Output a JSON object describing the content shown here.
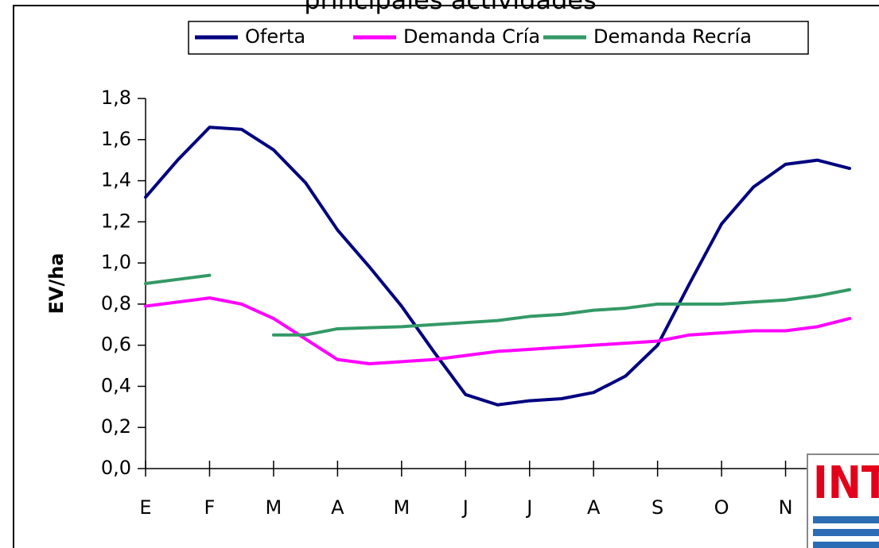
{
  "chart_data": {
    "type": "line",
    "title": "principales actividades",
    "ylabel": "EV/ha",
    "logo": "INTA",
    "x": [
      0,
      0.5,
      1,
      1.5,
      2,
      2.5,
      3,
      3.5,
      4,
      4.5,
      5,
      5.5,
      6,
      6.5,
      7,
      7.5,
      8,
      8.5,
      9,
      9.5,
      10,
      10.5,
      11
    ],
    "series": [
      {
        "name": "Oferta",
        "color": "#000080",
        "values": [
          1.32,
          1.5,
          1.66,
          1.65,
          1.55,
          1.39,
          1.16,
          0.98,
          0.79,
          0.57,
          0.36,
          0.31,
          0.33,
          0.34,
          0.37,
          0.45,
          0.6,
          0.9,
          1.19,
          1.37,
          1.48,
          1.5,
          1.46
        ]
      },
      {
        "name": "Demanda Cría",
        "color": "#ff00ff",
        "values": [
          0.79,
          0.81,
          0.83,
          0.8,
          0.73,
          0.63,
          0.53,
          0.51,
          0.52,
          0.53,
          0.55,
          0.57,
          0.58,
          0.59,
          0.6,
          0.61,
          0.62,
          0.65,
          0.66,
          0.67,
          0.67,
          0.69,
          0.73
        ]
      },
      {
        "name": "Demanda Recría",
        "color": "#339966",
        "values": [
          0.9,
          0.92,
          0.94,
          null,
          0.65,
          0.65,
          0.68,
          0.685,
          0.69,
          0.7,
          0.71,
          0.72,
          0.74,
          0.75,
          0.77,
          0.78,
          0.8,
          0.8,
          0.8,
          0.81,
          0.82,
          0.84,
          0.87
        ]
      }
    ],
    "xlim": [
      0,
      11
    ],
    "xticks": [
      {
        "value": 0,
        "label": "E"
      },
      {
        "value": 1,
        "label": "F"
      },
      {
        "value": 2,
        "label": "M"
      },
      {
        "value": 3,
        "label": "A"
      },
      {
        "value": 4,
        "label": "M"
      },
      {
        "value": 5,
        "label": "J"
      },
      {
        "value": 6,
        "label": "J"
      },
      {
        "value": 7,
        "label": "A"
      },
      {
        "value": 8,
        "label": "S"
      },
      {
        "value": 9,
        "label": "O"
      },
      {
        "value": 10,
        "label": "N"
      }
    ],
    "ylim": [
      0,
      1.8
    ],
    "yticks": [
      {
        "value": 0,
        "label": "0,0"
      },
      {
        "value": 0.2,
        "label": "0,2"
      },
      {
        "value": 0.4,
        "label": "0,4"
      },
      {
        "value": 0.6,
        "label": "0,6"
      },
      {
        "value": 0.8,
        "label": "0,8"
      },
      {
        "value": 1.0,
        "label": "1,0"
      },
      {
        "value": 1.2,
        "label": "1,2"
      },
      {
        "value": 1.4,
        "label": "1,4"
      },
      {
        "value": 1.6,
        "label": "1,6"
      },
      {
        "value": 1.8,
        "label": "1,8"
      }
    ],
    "legend": "top"
  }
}
